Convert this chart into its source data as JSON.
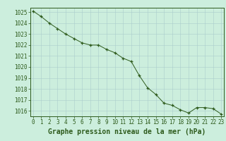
{
  "x": [
    0,
    1,
    2,
    3,
    4,
    5,
    6,
    7,
    8,
    9,
    10,
    11,
    12,
    13,
    14,
    15,
    16,
    17,
    18,
    19,
    20,
    21,
    22,
    23
  ],
  "y": [
    1025.1,
    1024.6,
    1024.0,
    1023.5,
    1023.0,
    1022.6,
    1022.2,
    1022.0,
    1022.0,
    1021.6,
    1021.3,
    1020.8,
    1020.5,
    1019.2,
    1018.1,
    1017.5,
    1016.7,
    1016.5,
    1016.1,
    1015.8,
    1016.3,
    1016.3,
    1016.2,
    1015.7
  ],
  "ylim": [
    1015.5,
    1025.4
  ],
  "xlim": [
    -0.3,
    23.3
  ],
  "yticks": [
    1016,
    1017,
    1018,
    1019,
    1020,
    1021,
    1022,
    1023,
    1024,
    1025
  ],
  "xticks": [
    0,
    1,
    2,
    3,
    4,
    5,
    6,
    7,
    8,
    9,
    10,
    11,
    12,
    13,
    14,
    15,
    16,
    17,
    18,
    19,
    20,
    21,
    22,
    23
  ],
  "xlabel": "Graphe pression niveau de la mer (hPa)",
  "line_color": "#2d5a1b",
  "marker_color": "#2d5a1b",
  "bg_color": "#cceedd",
  "grid_color": "#aacccc",
  "axis_color": "#2d5a1b",
  "tick_label_color": "#2d5a1b",
  "xlabel_color": "#2d5a1b",
  "tick_fontsize": 5.5,
  "xlabel_fontsize": 7.0
}
